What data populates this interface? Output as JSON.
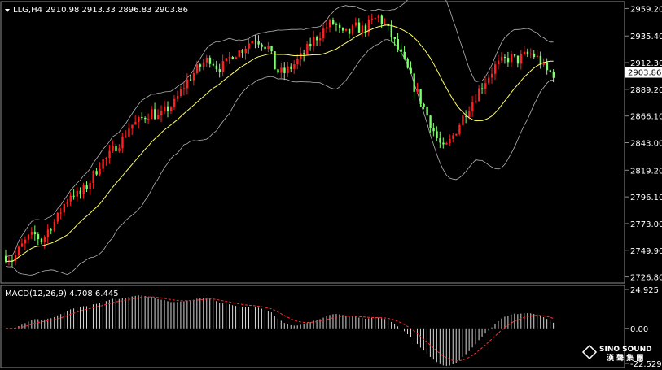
{
  "chart_data": {
    "type": "candlestick",
    "header": {
      "symbol": "LLG,H4",
      "ohlc": "2910.98 2913.33 2896.83 2903.86"
    },
    "current_price": 2903.86,
    "current_price_label": "2903.86",
    "y_ticks": [
      2959.2,
      2935.4,
      2912.3,
      2889.2,
      2866.1,
      2843.0,
      2819.2,
      2796.1,
      2773.0,
      2749.9,
      2726.8
    ],
    "y_tick_labels": [
      "2959.20",
      "2935.40",
      "2912.30",
      "2889.20",
      "2866.10",
      "2843.00",
      "2819.20",
      "2796.10",
      "2773.00",
      "2749.90",
      "2726.80"
    ],
    "ylim": [
      2723.0,
      2963.0
    ],
    "colors": {
      "up": "#ff2020",
      "down": "#7cff6a",
      "ma": "#ffff66",
      "band": "#b4b4b4",
      "macd_hist": "#d8d8d8",
      "macd_signal": "#ff3030"
    },
    "price_path": [
      2745,
      2742,
      2752,
      2760,
      2763,
      2758,
      2770,
      2777,
      2790,
      2800,
      2797,
      2804,
      2815,
      2826,
      2830,
      2840,
      2846,
      2858,
      2860,
      2866,
      2870,
      2864,
      2872,
      2876,
      2888,
      2898,
      2905,
      2912,
      2916,
      2908,
      2910,
      2920,
      2922,
      2928,
      2934,
      2930,
      2925,
      2905,
      2903,
      2908,
      2914,
      2921,
      2931,
      2937,
      2944,
      2947,
      2936,
      2938,
      2943,
      2941,
      2947,
      2952,
      2944,
      2933,
      2920,
      2906,
      2890,
      2877,
      2862,
      2847,
      2836,
      2846,
      2858,
      2870,
      2880,
      2891,
      2900,
      2909,
      2913,
      2917,
      2914,
      2918,
      2920,
      2915,
      2905,
      2903
    ],
    "macd": {
      "label": "MACD(12,26,9) 4.708 6.445",
      "y_ticks": [
        24.925,
        0.0,
        -22.529
      ],
      "y_tick_labels": [
        "24.925",
        "0.00",
        "-22.529"
      ]
    },
    "watermark": {
      "brand": "SINO SOUND",
      "sub": "漢 聲 集 團"
    }
  }
}
